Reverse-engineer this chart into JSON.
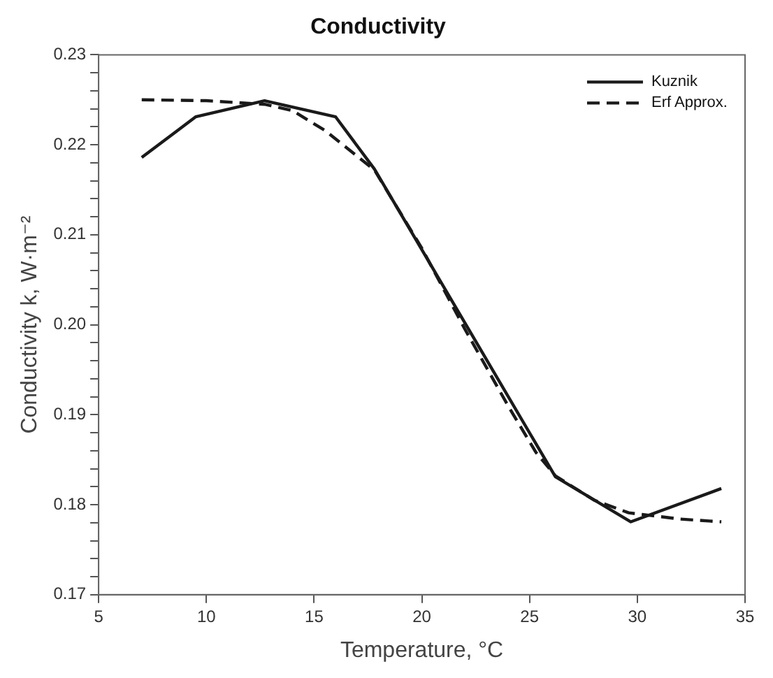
{
  "chart_data": {
    "type": "line",
    "title": "Conductivity",
    "xlabel": "Temperature, °C",
    "ylabel": "Conductivity k, W·m⁻²",
    "xlim": [
      5,
      35
    ],
    "xticks": [
      5,
      10,
      15,
      20,
      25,
      30,
      35
    ],
    "ylim": [
      0.17,
      0.23
    ],
    "yticks": [
      "0.17",
      {
        "value": 0.172,
        "label": null
      },
      {
        "value": 0.174,
        "label": null
      },
      {
        "value": 0.176,
        "label": null
      },
      {
        "value": 0.178,
        "label": null
      },
      {
        "value": 0.18,
        "label": "0.18"
      },
      {
        "value": 0.182,
        "label": null
      },
      {
        "value": 0.184,
        "label": null
      },
      {
        "value": 0.186,
        "label": null
      },
      {
        "value": 0.188,
        "label": null
      },
      {
        "value": 0.19,
        "label": "0.19"
      },
      {
        "value": 0.192,
        "label": null
      },
      {
        "value": 0.194,
        "label": null
      },
      {
        "value": 0.196,
        "label": null
      },
      {
        "value": 0.198,
        "label": null
      },
      {
        "value": 0.2,
        "label": "0.20"
      },
      {
        "value": 0.202,
        "label": null
      },
      {
        "value": 0.204,
        "label": null
      },
      {
        "value": 0.206,
        "label": null
      },
      {
        "value": 0.208,
        "label": null
      },
      {
        "value": 0.21,
        "label": "0.21"
      },
      {
        "value": 0.212,
        "label": null
      },
      {
        "value": 0.214,
        "label": null
      },
      {
        "value": 0.216,
        "label": null
      },
      {
        "value": 0.218,
        "label": null
      },
      {
        "value": 0.22,
        "label": "0.22"
      },
      {
        "value": 0.222,
        "label": null
      },
      {
        "value": 0.224,
        "label": null
      },
      {
        "value": 0.226,
        "label": null
      },
      {
        "value": 0.228,
        "label": null
      },
      {
        "value": 0.23,
        "label": "0.23"
      }
    ],
    "grid": false,
    "legend": "top right",
    "marker": "none",
    "series": [
      {
        "name": "Kuznik",
        "color": "#1a1a1a",
        "line_style": "solid",
        "x": [
          7,
          9.5,
          12.7,
          16,
          17.8,
          26.2,
          29.7,
          33.9
        ],
        "values": [
          0.2186,
          0.2231,
          0.2249,
          0.2231,
          0.2173,
          0.1831,
          0.1781,
          0.1818
        ]
      },
      {
        "name": "Erf Approx.",
        "color": "#1a1a1a",
        "line_style": "dashed",
        "x": [
          7,
          10,
          12.7,
          14,
          15.5,
          17.8,
          20,
          22,
          24,
          25.3,
          26.2,
          28,
          29.6,
          32,
          33.9
        ],
        "values": [
          0.225,
          0.2249,
          0.2245,
          0.2238,
          0.2216,
          0.2172,
          0.2085,
          0.1995,
          0.191,
          0.1858,
          0.1832,
          0.1805,
          0.1791,
          0.1784,
          0.1781
        ]
      }
    ]
  }
}
